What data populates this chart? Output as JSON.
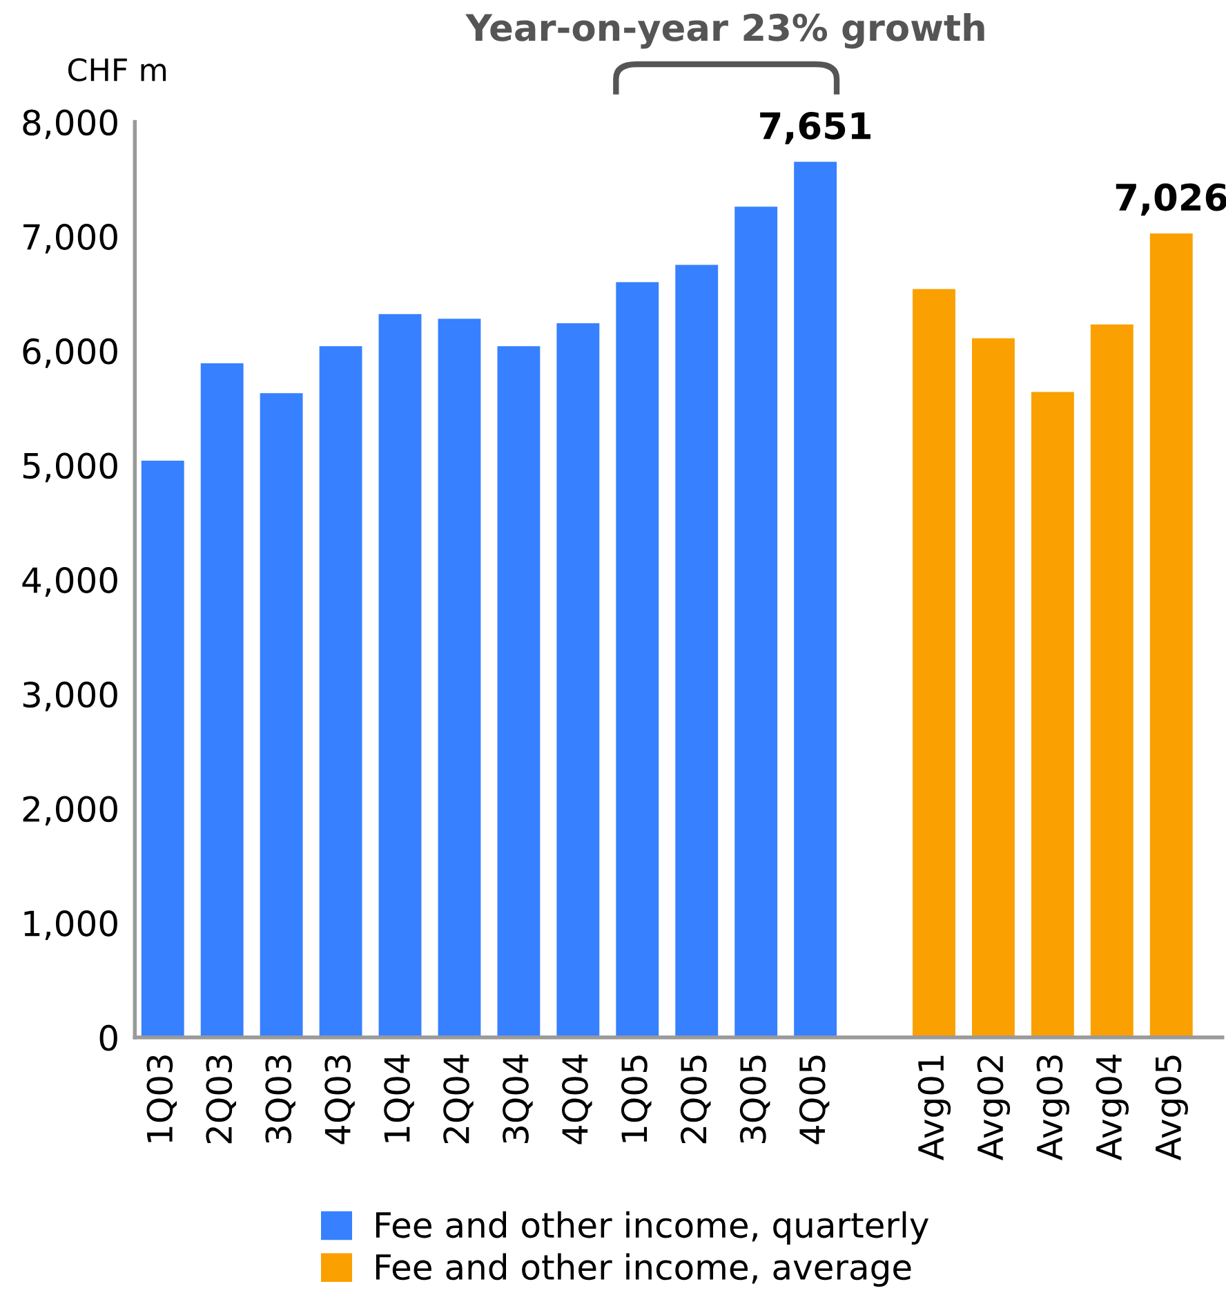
{
  "chart_data": {
    "type": "bar",
    "ylabel": "CHF m",
    "annotations": [
      "Year-on-year 23% growth"
    ],
    "categories": [
      "1Q03",
      "2Q03",
      "3Q03",
      "4Q03",
      "1Q04",
      "2Q04",
      "3Q04",
      "4Q04",
      "1Q05",
      "2Q05",
      "3Q05",
      "4Q05",
      null,
      "Avg01",
      "Avg02",
      "Avg03",
      "Avg04",
      "Avg05"
    ],
    "series": [
      {
        "name": "Fee and other income, quarterly",
        "color": "#3780ff",
        "values": [
          5040,
          5890,
          5630,
          6040,
          6320,
          6280,
          6040,
          6240,
          6600,
          6750,
          7260,
          7651,
          null,
          null,
          null,
          null,
          null,
          null
        ],
        "value_labels": [
          null,
          null,
          null,
          null,
          null,
          null,
          null,
          null,
          null,
          null,
          null,
          "7,651",
          null,
          null,
          null,
          null,
          null,
          null
        ]
      },
      {
        "name": "Fee and other income, average",
        "color": "#faa000",
        "values": [
          null,
          null,
          null,
          null,
          null,
          null,
          null,
          null,
          null,
          null,
          null,
          null,
          null,
          6540,
          6110,
          5640,
          6230,
          7026
        ],
        "value_labels": [
          null,
          null,
          null,
          null,
          null,
          null,
          null,
          null,
          null,
          null,
          null,
          null,
          null,
          null,
          null,
          null,
          null,
          "7,026"
        ]
      }
    ],
    "ylim": [
      0,
      8000
    ],
    "yticks": [
      0,
      {
        "value": 1000,
        "label": "1,000"
      },
      {
        "value": 2000,
        "label": "2,000"
      },
      {
        "value": 3000,
        "label": "3,000"
      },
      {
        "value": 4000,
        "label": "4,000"
      },
      {
        "value": 5000,
        "label": "5,000"
      },
      {
        "value": 6000,
        "label": "6,000"
      },
      {
        "value": 7000,
        "label": "7,000"
      },
      {
        "value": 8000,
        "label": "8,000"
      }
    ],
    "legend": "bottom"
  }
}
